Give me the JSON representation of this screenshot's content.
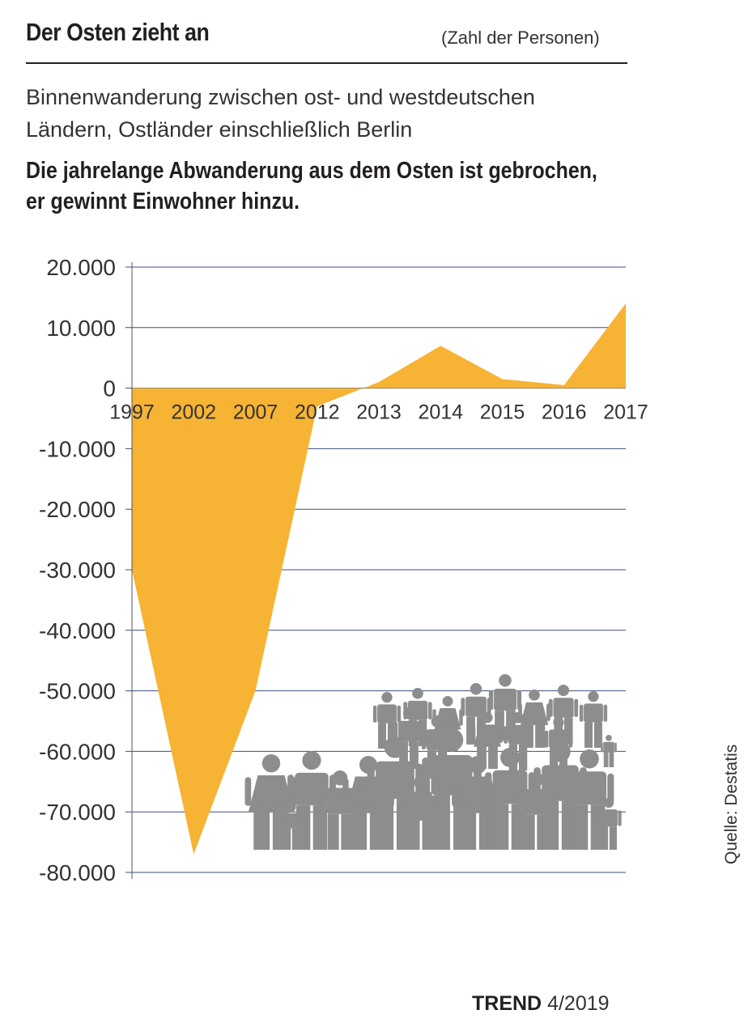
{
  "header": {
    "title": "Der Osten zieht an",
    "unit": "(Zahl der Personen)",
    "subtitle_line1": "Binnenwanderung zwischen ost- und westdeutschen",
    "subtitle_line2": "Ländern, Ostländer einschließlich Berlin",
    "headline_line1": "Die jahrelange Abwanderung aus dem Osten ist gebrochen,",
    "headline_line2": "er gewinnt Einwohner hinzu."
  },
  "source": "Quelle: Destatis",
  "footer": {
    "brand": "TREND",
    "issue": "4/2019"
  },
  "colors": {
    "area": "#f6b334",
    "grid": "#3b4f7a",
    "people": "#8d8d8d",
    "text": "#231f20"
  },
  "chart_data": {
    "type": "area",
    "categories": [
      "1997",
      "2002",
      "2007",
      "2012",
      "2013",
      "2014",
      "2015",
      "2016",
      "2017"
    ],
    "values": [
      -30000,
      -77000,
      -50000,
      -3000,
      1000,
      7000,
      1500,
      500,
      14000
    ],
    "ylim": [
      -80000,
      20000
    ],
    "yticks": [
      20000,
      10000,
      0,
      -10000,
      -20000,
      -30000,
      -40000,
      -50000,
      -60000,
      -70000,
      -80000
    ],
    "ytick_labels": [
      "20.000",
      "10.000",
      "0",
      "-10.000",
      "-20.000",
      "-30.000",
      "-40.000",
      "-50.000",
      "-60.000",
      "-70.000",
      "-80.000"
    ],
    "grid": true,
    "decoration": "people-crowd-icon"
  }
}
